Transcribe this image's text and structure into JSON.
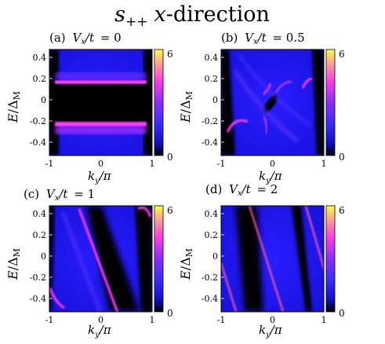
{
  "figure": {
    "title": {
      "s": "s",
      "sub": "++",
      "x": "x",
      "rest": "-direction"
    },
    "colorbar": {
      "min_label": "0",
      "max_label": "6",
      "range": [
        0,
        6
      ]
    },
    "axes": {
      "ylabel": {
        "E": "E",
        "slash": "/Δ",
        "sub": "M"
      },
      "xlabel": {
        "k": "k",
        "sub": "y",
        "rest": "/π"
      },
      "yticks": [
        "0.4",
        "0.2",
        "0",
        "-0.2",
        "-0.4"
      ],
      "xticks": [
        "-1",
        "0",
        "1"
      ]
    },
    "panels": [
      {
        "id": "a",
        "prefix": "(a)",
        "v": "V",
        "vsub": "x",
        "mid": "/t",
        "value": "= 0"
      },
      {
        "id": "b",
        "prefix": "(b)",
        "v": "V",
        "vsub": "x",
        "mid": "/t",
        "value": "= 0.5"
      },
      {
        "id": "c",
        "prefix": "(c)",
        "v": "V",
        "vsub": "x",
        "mid": "/t",
        "value": "= 1"
      },
      {
        "id": "d",
        "prefix": "(d)",
        "v": "V",
        "vsub": "x",
        "mid": "/t",
        "value": "= 2"
      }
    ],
    "colors": {
      "background": "#1414e6",
      "dark": "#000000",
      "bright": "#ff3cff"
    }
  }
}
